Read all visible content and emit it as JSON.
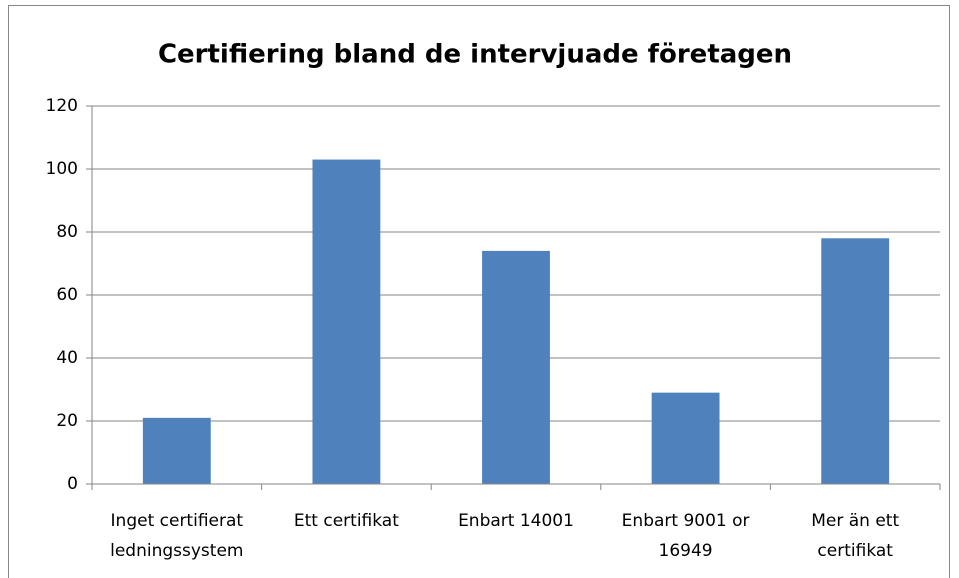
{
  "chart_data": {
    "type": "bar",
    "title": "Certifiering bland de intervjuade företagen",
    "categories": [
      [
        "Inget certifierat",
        "ledningssystem"
      ],
      [
        "Ett certifikat"
      ],
      [
        "Enbart 14001"
      ],
      [
        "Enbart 9001 or",
        "16949"
      ],
      [
        "Mer än ett",
        "certifikat"
      ]
    ],
    "values": [
      21,
      103,
      74,
      29,
      78
    ],
    "color": "#4f81bd",
    "ylim": [
      0,
      120
    ],
    "yticks": [
      0,
      20,
      40,
      60,
      80,
      100,
      120
    ],
    "grid": true
  }
}
